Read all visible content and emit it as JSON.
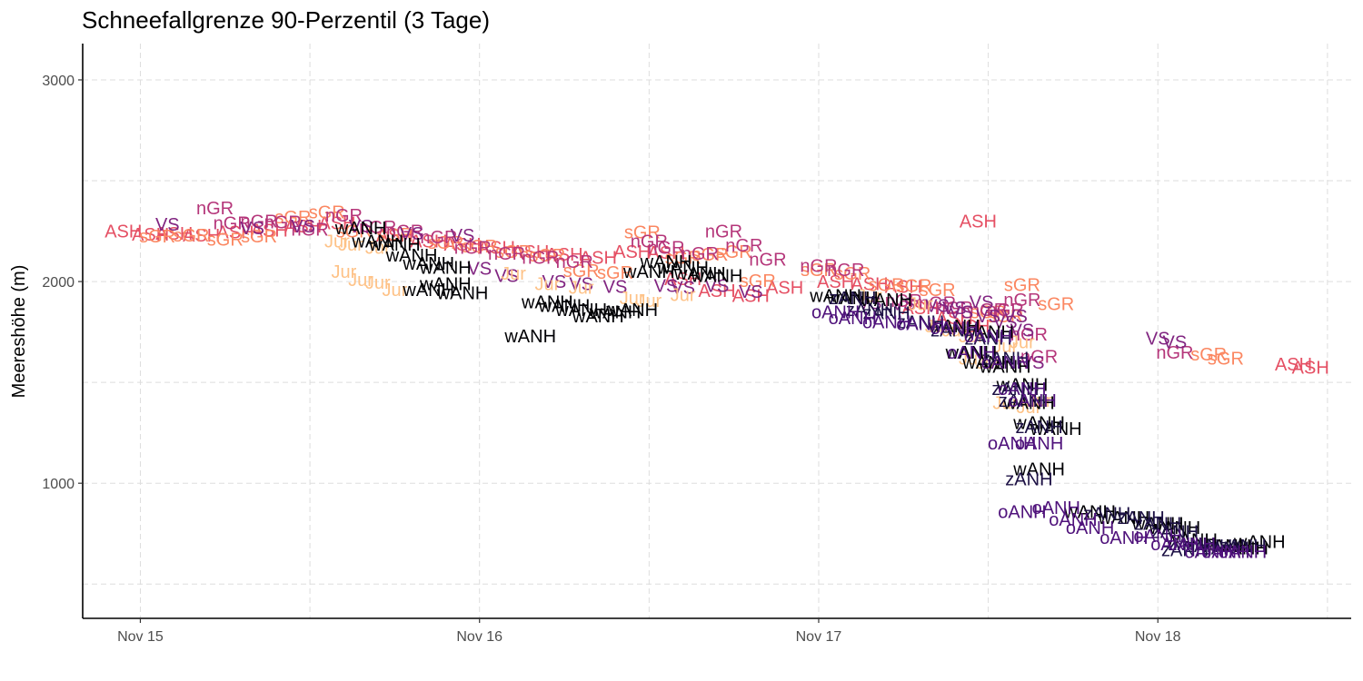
{
  "chart_data": {
    "type": "scatter",
    "mark": "text",
    "title": "Schneefallgrenze 90-Perzentil (3 Tage)",
    "xlabel": "",
    "ylabel": "Meereshöhe (m)",
    "x_unit": "days since Nov 15 00:00",
    "xlim": [
      -0.17,
      3.57
    ],
    "ylim": [
      330,
      3180
    ],
    "xticks": [
      {
        "value": 0,
        "label": "Nov 15"
      },
      {
        "value": 1,
        "label": "Nov 16"
      },
      {
        "value": 2,
        "label": "Nov 17"
      },
      {
        "value": 3,
        "label": "Nov 18"
      }
    ],
    "yticks": [
      {
        "value": 1000,
        "label": "1000"
      },
      {
        "value": 2000,
        "label": "2000"
      },
      {
        "value": 3000,
        "label": "3000"
      }
    ],
    "minor_y": [
      500,
      1500,
      2500
    ],
    "minor_x": [
      0.5,
      1.5,
      2.5,
      3.5
    ],
    "grid": true,
    "colors": {
      "wANH": "#000004",
      "zANH": "#1c1044",
      "oANH": "#4f127b",
      "VS": "#812581",
      "nGR": "#b5367a",
      "ASH": "#e55064",
      "sGR": "#fb8761",
      "Jur": "#fec287"
    },
    "series": [
      {
        "name": "ASH",
        "points": [
          [
            -0.05,
            2250
          ],
          [
            0.03,
            2235
          ],
          [
            0.1,
            2240
          ],
          [
            0.18,
            2230
          ],
          [
            0.28,
            2245
          ],
          [
            0.38,
            2255
          ],
          [
            0.48,
            2275
          ],
          [
            0.58,
            2290
          ],
          [
            0.75,
            2230
          ],
          [
            0.85,
            2200
          ],
          [
            0.95,
            2185
          ],
          [
            1.05,
            2170
          ],
          [
            1.15,
            2150
          ],
          [
            1.25,
            2135
          ],
          [
            1.35,
            2120
          ],
          [
            1.45,
            2150
          ],
          [
            1.55,
            2145
          ],
          [
            1.6,
            2015
          ],
          [
            1.7,
            1955
          ],
          [
            1.8,
            1930
          ],
          [
            1.9,
            1970
          ],
          [
            2.05,
            2000
          ],
          [
            2.15,
            1990
          ],
          [
            2.25,
            1975
          ],
          [
            2.3,
            1870
          ],
          [
            2.4,
            1820
          ],
          [
            2.45,
            1780
          ],
          [
            3.4,
            1590
          ],
          [
            3.45,
            1575
          ],
          [
            2.47,
            2300
          ]
        ]
      },
      {
        "name": "sGR",
        "points": [
          [
            0.05,
            2225
          ],
          [
            0.15,
            2230
          ],
          [
            0.25,
            2210
          ],
          [
            0.35,
            2225
          ],
          [
            0.45,
            2320
          ],
          [
            0.55,
            2345
          ],
          [
            0.63,
            2250
          ],
          [
            0.75,
            2235
          ],
          [
            0.9,
            2195
          ],
          [
            1.0,
            2175
          ],
          [
            1.1,
            2150
          ],
          [
            1.2,
            2130
          ],
          [
            1.3,
            2055
          ],
          [
            1.4,
            2045
          ],
          [
            1.48,
            2245
          ],
          [
            1.6,
            2120
          ],
          [
            1.68,
            2135
          ],
          [
            1.75,
            2150
          ],
          [
            1.82,
            2005
          ],
          [
            2.0,
            2060
          ],
          [
            2.1,
            2040
          ],
          [
            2.2,
            1985
          ],
          [
            2.28,
            1980
          ],
          [
            2.35,
            1960
          ],
          [
            2.5,
            1850
          ],
          [
            2.55,
            1830
          ],
          [
            2.6,
            1985
          ],
          [
            2.7,
            1890
          ],
          [
            3.15,
            1640
          ],
          [
            3.2,
            1620
          ]
        ]
      },
      {
        "name": "nGR",
        "points": [
          [
            0.22,
            2365
          ],
          [
            0.27,
            2290
          ],
          [
            0.35,
            2300
          ],
          [
            0.42,
            2295
          ],
          [
            0.5,
            2260
          ],
          [
            0.6,
            2330
          ],
          [
            0.7,
            2270
          ],
          [
            0.78,
            2250
          ],
          [
            0.88,
            2220
          ],
          [
            0.98,
            2170
          ],
          [
            1.08,
            2140
          ],
          [
            1.18,
            2120
          ],
          [
            1.28,
            2100
          ],
          [
            1.5,
            2200
          ],
          [
            1.55,
            2170
          ],
          [
            1.65,
            2140
          ],
          [
            1.72,
            2250
          ],
          [
            1.78,
            2180
          ],
          [
            1.85,
            2110
          ],
          [
            2.0,
            2080
          ],
          [
            2.08,
            2060
          ],
          [
            2.25,
            1905
          ],
          [
            2.35,
            1895
          ],
          [
            2.4,
            1870
          ],
          [
            2.5,
            1860
          ],
          [
            2.55,
            1860
          ],
          [
            2.6,
            1910
          ],
          [
            2.62,
            1740
          ],
          [
            2.65,
            1630
          ],
          [
            3.05,
            1650
          ]
        ]
      },
      {
        "name": "VS",
        "points": [
          [
            0.08,
            2285
          ],
          [
            0.33,
            2265
          ],
          [
            0.48,
            2275
          ],
          [
            0.65,
            2275
          ],
          [
            0.8,
            2240
          ],
          [
            0.95,
            2230
          ],
          [
            1.0,
            2065
          ],
          [
            1.08,
            2030
          ],
          [
            1.22,
            2000
          ],
          [
            1.3,
            1990
          ],
          [
            1.4,
            1975
          ],
          [
            1.55,
            1980
          ],
          [
            1.6,
            1970
          ],
          [
            1.7,
            1980
          ],
          [
            1.8,
            1950
          ],
          [
            2.15,
            1895
          ],
          [
            2.25,
            1890
          ],
          [
            2.35,
            1880
          ],
          [
            2.42,
            1850
          ],
          [
            2.5,
            1830
          ],
          [
            2.55,
            1800
          ],
          [
            2.58,
            1830
          ],
          [
            2.6,
            1760
          ],
          [
            2.63,
            1600
          ],
          [
            2.48,
            1900
          ],
          [
            2.4,
            1870
          ],
          [
            3.0,
            1720
          ],
          [
            3.05,
            1700
          ]
        ]
      },
      {
        "name": "Jur",
        "points": [
          [
            0.58,
            2200
          ],
          [
            0.62,
            2185
          ],
          [
            0.7,
            2170
          ],
          [
            0.6,
            2050
          ],
          [
            0.65,
            2010
          ],
          [
            0.7,
            1995
          ],
          [
            0.75,
            1960
          ],
          [
            1.1,
            2040
          ],
          [
            1.2,
            1990
          ],
          [
            1.3,
            1970
          ],
          [
            1.45,
            1920
          ],
          [
            1.5,
            1905
          ],
          [
            1.6,
            1935
          ],
          [
            2.15,
            1930
          ],
          [
            2.3,
            1890
          ],
          [
            2.35,
            1780
          ],
          [
            2.4,
            1760
          ],
          [
            2.45,
            1730
          ],
          [
            2.55,
            1680
          ],
          [
            2.55,
            1400
          ],
          [
            2.62,
            1380
          ],
          [
            2.65,
            1410
          ],
          [
            2.45,
            1620
          ],
          [
            2.5,
            1600
          ],
          [
            2.6,
            1700
          ]
        ]
      },
      {
        "name": "wANH",
        "points": [
          [
            0.65,
            2265
          ],
          [
            0.7,
            2200
          ],
          [
            0.75,
            2185
          ],
          [
            0.8,
            2130
          ],
          [
            0.85,
            2090
          ],
          [
            0.9,
            2070
          ],
          [
            0.9,
            1990
          ],
          [
            0.85,
            1960
          ],
          [
            0.95,
            1945
          ],
          [
            1.15,
            1730
          ],
          [
            1.2,
            1900
          ],
          [
            1.25,
            1880
          ],
          [
            1.3,
            1860
          ],
          [
            1.35,
            1830
          ],
          [
            1.4,
            1850
          ],
          [
            1.45,
            1860
          ],
          [
            1.5,
            2050
          ],
          [
            1.55,
            2100
          ],
          [
            1.6,
            2070
          ],
          [
            1.65,
            2040
          ],
          [
            1.7,
            2030
          ],
          [
            2.05,
            1930
          ],
          [
            2.1,
            1920
          ],
          [
            2.2,
            1910
          ],
          [
            2.4,
            1780
          ],
          [
            2.5,
            1750
          ],
          [
            2.45,
            1650
          ],
          [
            2.5,
            1600
          ],
          [
            2.55,
            1580
          ],
          [
            2.6,
            1490
          ],
          [
            2.62,
            1400
          ],
          [
            2.65,
            1300
          ],
          [
            2.7,
            1270
          ],
          [
            2.65,
            1070
          ],
          [
            2.8,
            860
          ],
          [
            2.9,
            830
          ],
          [
            3.0,
            800
          ],
          [
            3.05,
            780
          ],
          [
            3.1,
            720
          ],
          [
            3.2,
            690
          ],
          [
            3.25,
            680
          ],
          [
            3.3,
            710
          ]
        ]
      },
      {
        "name": "zANH",
        "points": [
          [
            2.1,
            1920
          ],
          [
            2.15,
            1860
          ],
          [
            2.2,
            1845
          ],
          [
            2.3,
            1800
          ],
          [
            2.4,
            1760
          ],
          [
            2.5,
            1720
          ],
          [
            2.55,
            1620
          ],
          [
            2.58,
            1470
          ],
          [
            2.6,
            1410
          ],
          [
            2.65,
            1280
          ],
          [
            2.62,
            1020
          ],
          [
            2.85,
            850
          ],
          [
            2.95,
            830
          ],
          [
            3.0,
            800
          ],
          [
            3.05,
            760
          ],
          [
            3.1,
            700
          ],
          [
            3.15,
            690
          ],
          [
            3.2,
            680
          ],
          [
            3.25,
            690
          ],
          [
            3.08,
            670
          ]
        ]
      },
      {
        "name": "oANH",
        "points": [
          [
            2.05,
            1850
          ],
          [
            2.1,
            1820
          ],
          [
            2.2,
            1800
          ],
          [
            2.3,
            1790
          ],
          [
            2.4,
            1770
          ],
          [
            2.5,
            1730
          ],
          [
            2.45,
            1650
          ],
          [
            2.55,
            1600
          ],
          [
            2.6,
            1470
          ],
          [
            2.63,
            1410
          ],
          [
            2.65,
            1200
          ],
          [
            2.57,
            1200
          ],
          [
            2.6,
            860
          ],
          [
            2.75,
            820
          ],
          [
            2.8,
            780
          ],
          [
            2.9,
            730
          ],
          [
            3.0,
            740
          ],
          [
            3.05,
            700
          ],
          [
            3.1,
            700
          ],
          [
            3.15,
            660
          ],
          [
            3.2,
            660
          ],
          [
            3.25,
            660
          ],
          [
            2.7,
            880
          ]
        ]
      }
    ]
  }
}
